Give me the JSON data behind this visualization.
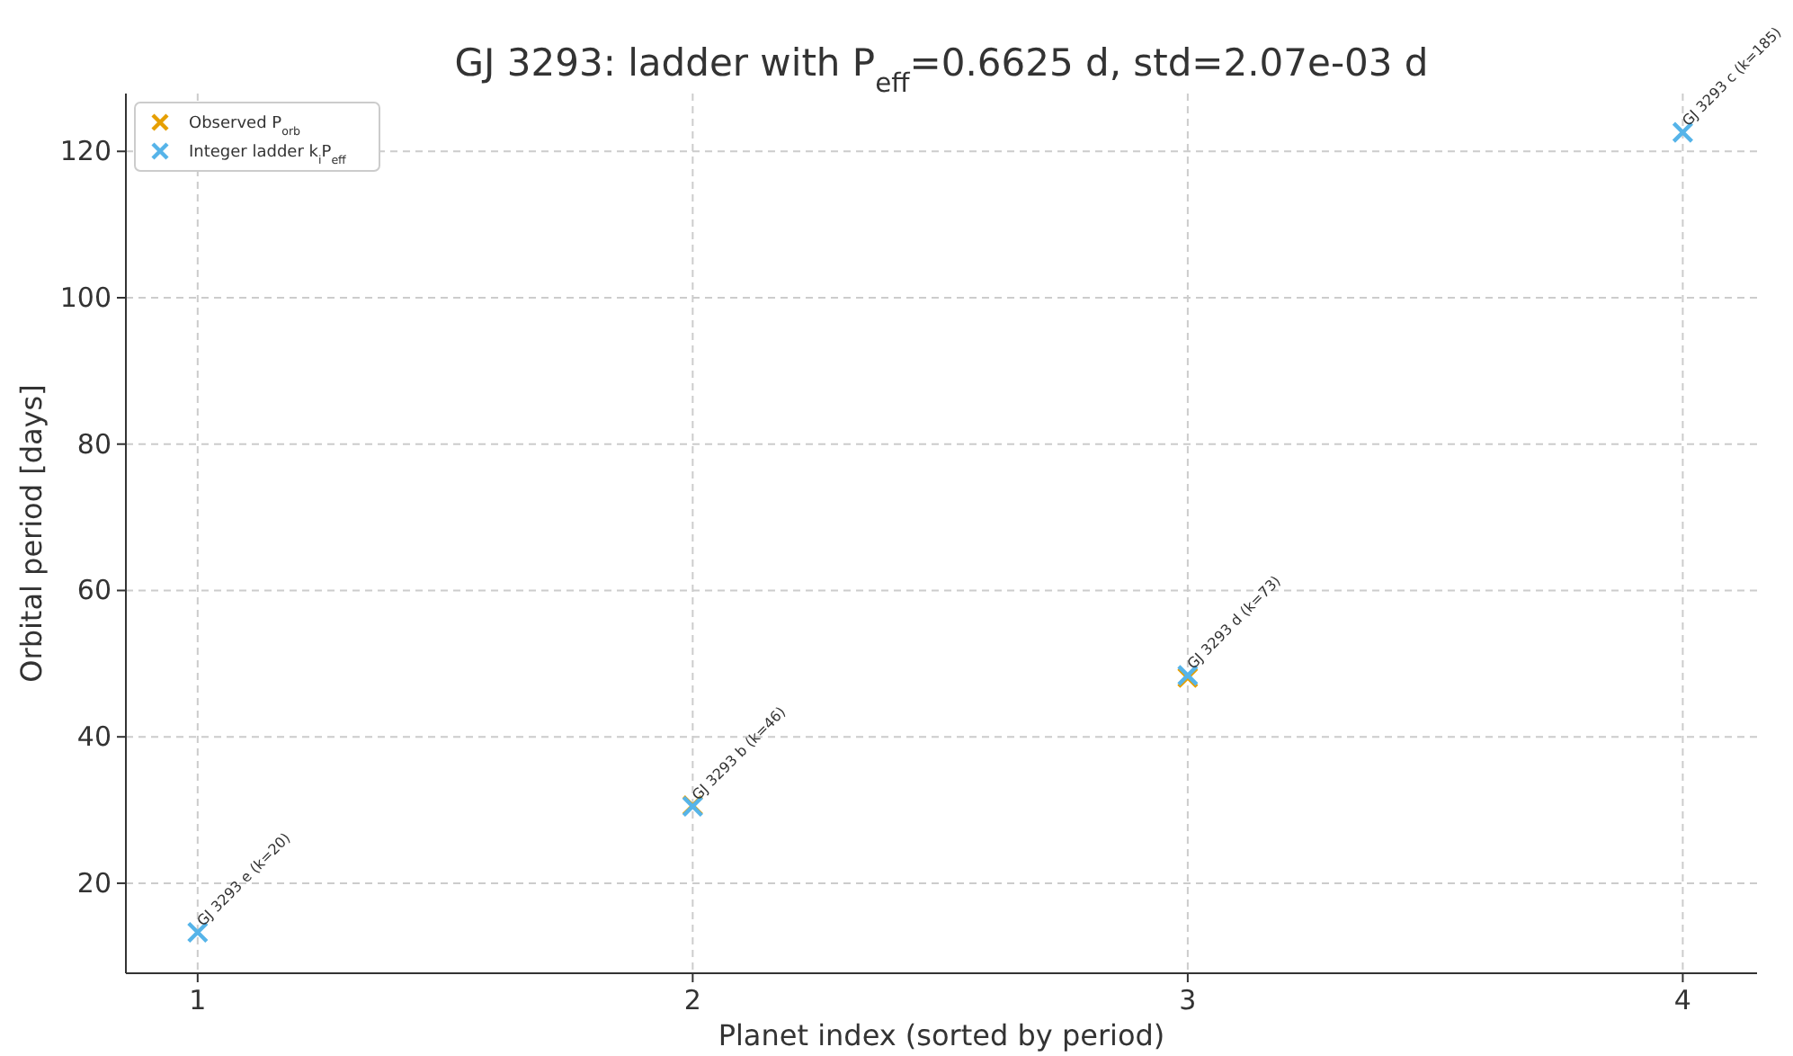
{
  "chart_data": {
    "type": "scatter",
    "title": "GJ 3293: ladder with P$_{eff}$=0.6625 d, std=2.07e-03 d",
    "xlabel": "Planet index (sorted by period)",
    "ylabel": "Orbital period [days]",
    "x": [
      1,
      2,
      3,
      4
    ],
    "xlim": [
      0.855,
      4.15
    ],
    "xticks": [
      1,
      2,
      3,
      4
    ],
    "ylim": [
      7.7,
      127.9
    ],
    "yticks": [
      20,
      40,
      60,
      80,
      100,
      120
    ],
    "grid": true,
    "legend": "top left",
    "marker": "cross",
    "series": [
      {
        "name": "Observed P$_{orb}$",
        "color": "#e69f00",
        "values": [
          null,
          30.6,
          48.1,
          null
        ]
      },
      {
        "name": "Integer ladder k$_{i}$P$_{eff}$",
        "color": "#56b4e9",
        "values": [
          13.3,
          30.5,
          48.4,
          122.6
        ]
      }
    ],
    "annotations": [
      {
        "text": "GJ 3293 e (k=20)",
        "x": 1,
        "y": 13.3
      },
      {
        "text": "GJ 3293 b (k=46)",
        "x": 2,
        "y": 30.5
      },
      {
        "text": "GJ 3293 d (k=73)",
        "x": 3,
        "y": 48.4
      },
      {
        "text": "GJ 3293 c (k=185)",
        "x": 4,
        "y": 122.6
      }
    ]
  }
}
